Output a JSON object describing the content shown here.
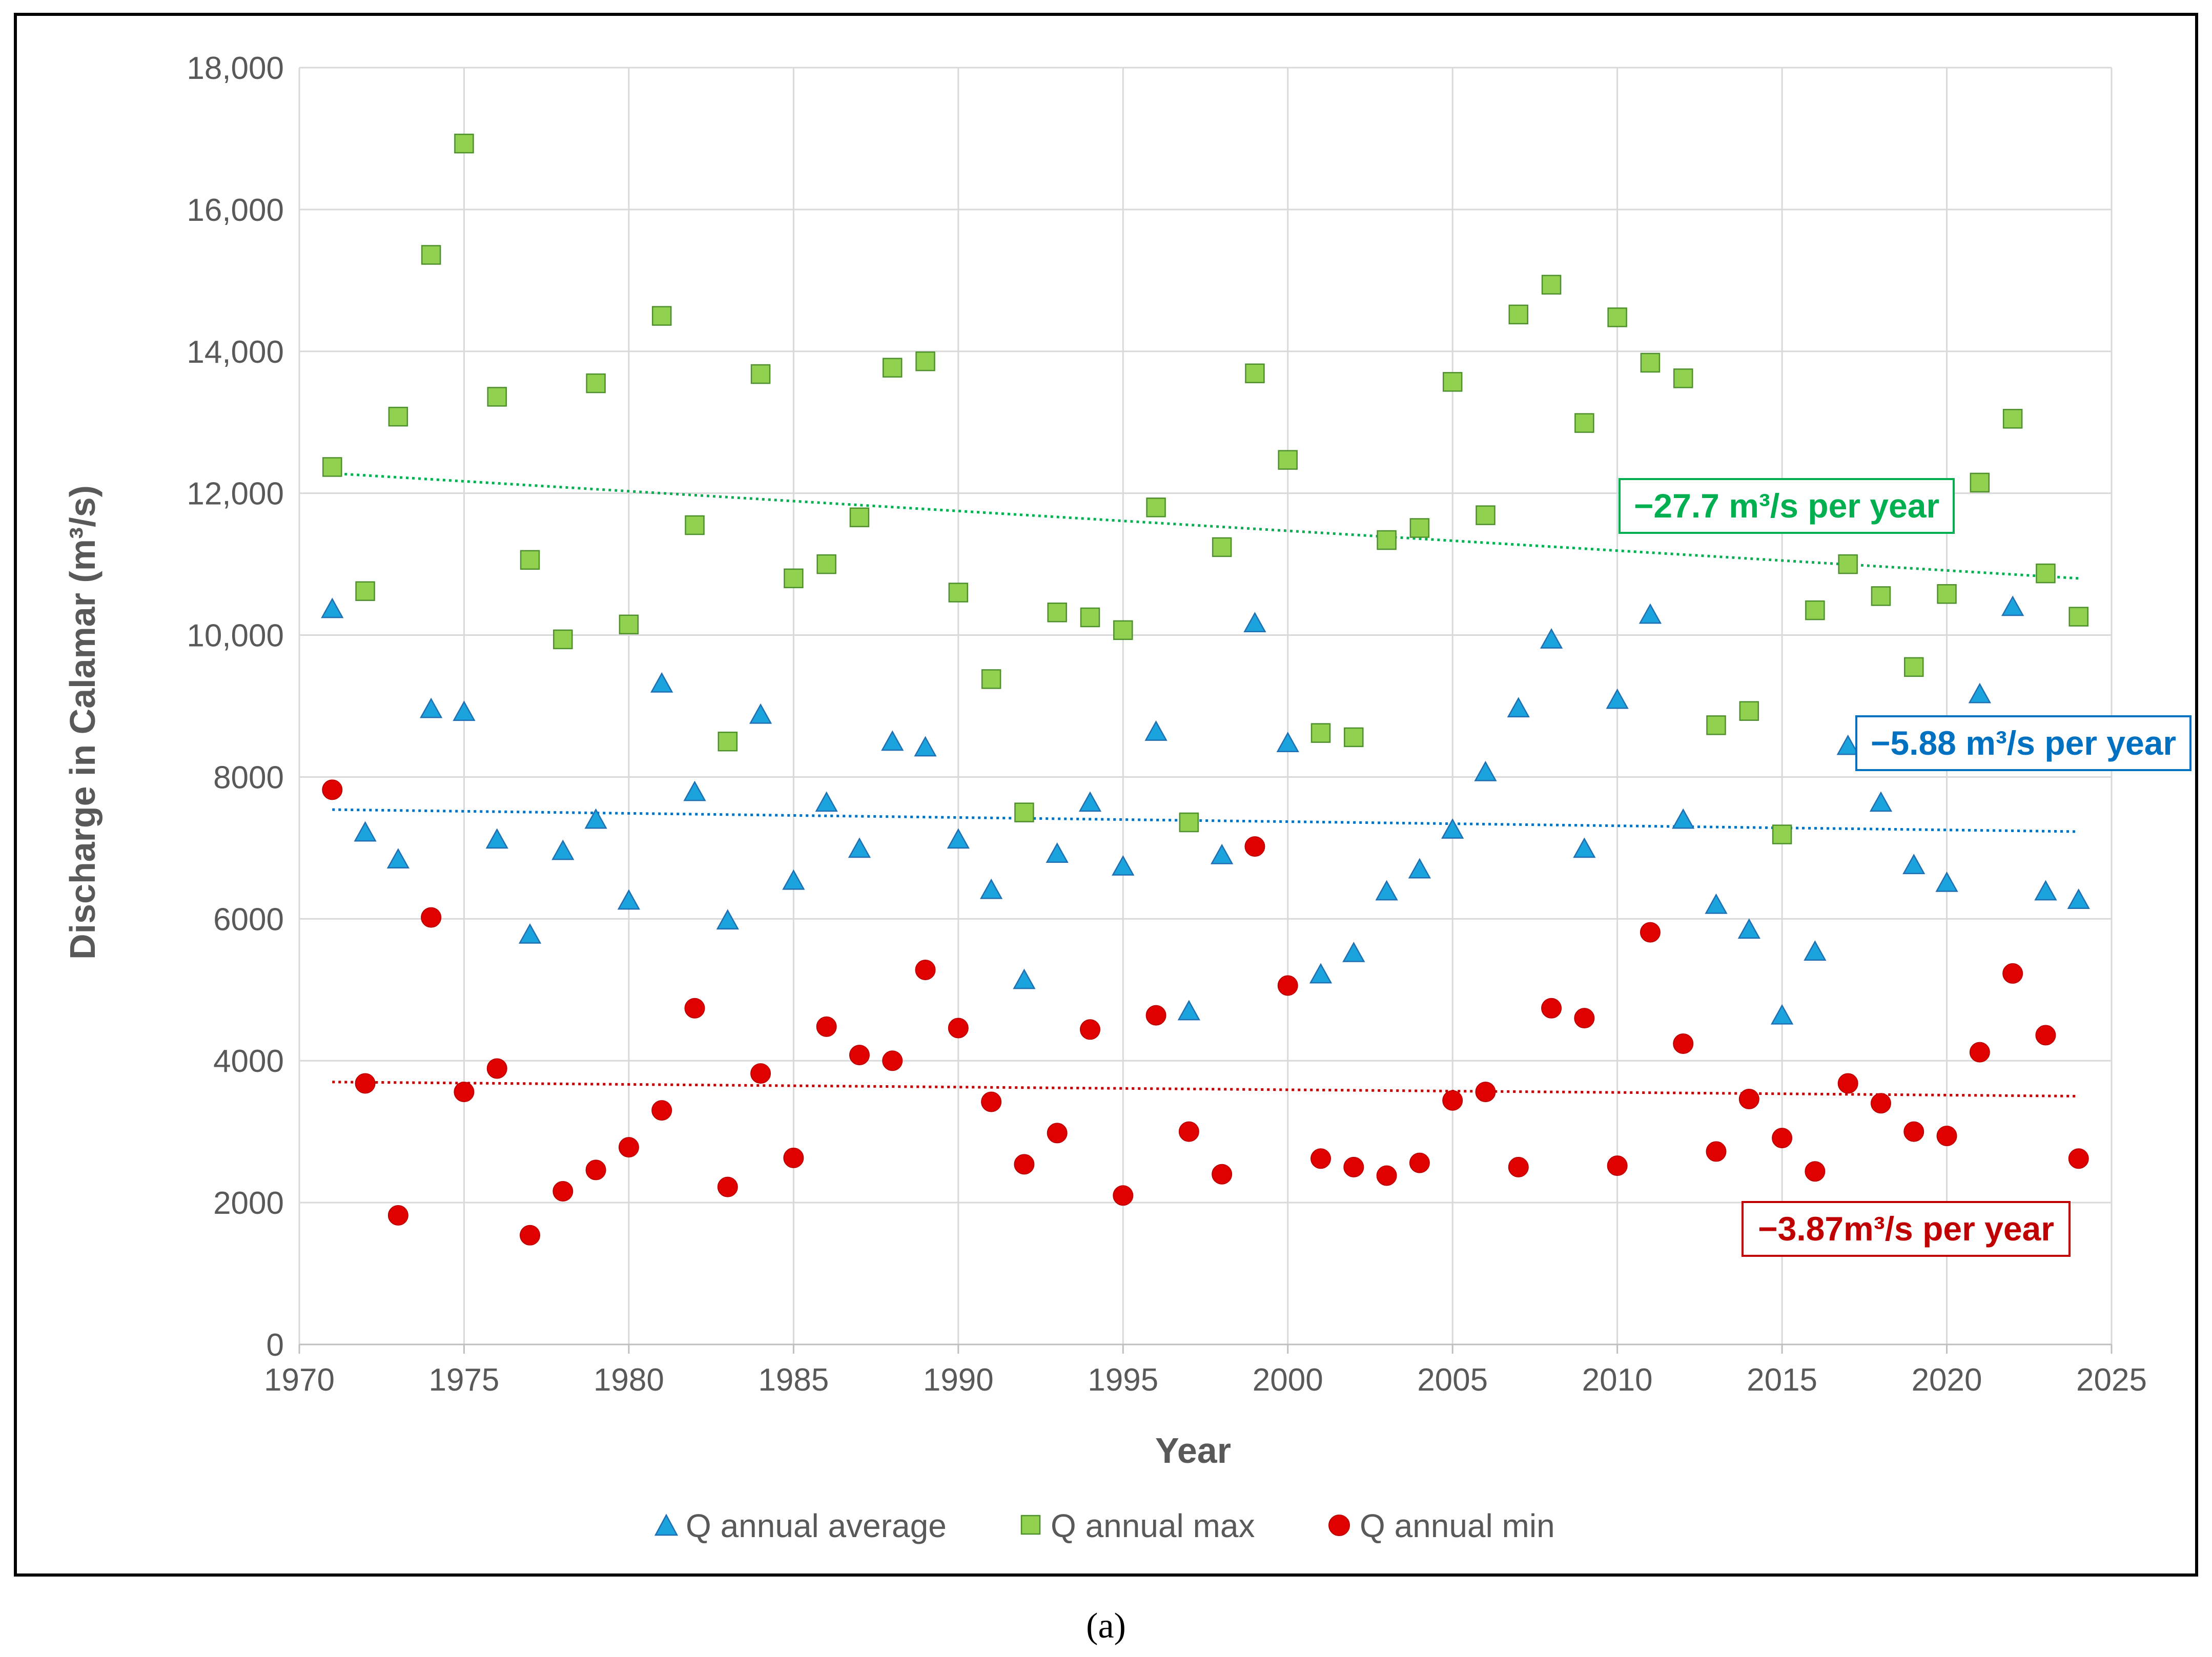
{
  "chart_data": {
    "type": "scatter",
    "title": "",
    "xlabel": "Year",
    "ylabel": "Discharge in Calamar (m³/s)",
    "xlim": [
      1970,
      2025
    ],
    "ylim": [
      0,
      18000
    ],
    "x_ticks": [
      1970,
      1975,
      1980,
      1985,
      1990,
      1995,
      2000,
      2005,
      2010,
      2015,
      2020,
      2025
    ],
    "x_tick_labels": [
      "1970",
      "1975",
      "1980",
      "1985",
      "1990",
      "1995",
      "2000",
      "2005",
      "2010",
      "2015",
      "2020",
      "2025"
    ],
    "y_ticks": [
      0,
      2000,
      4000,
      6000,
      8000,
      10000,
      12000,
      14000,
      16000,
      18000
    ],
    "y_tick_labels": [
      "0",
      "2000",
      "4000",
      "6000",
      "8000",
      "10,000",
      "12,000",
      "14,000",
      "16,000",
      "18,000"
    ],
    "grid": true,
    "legend_position": "bottom",
    "caption": "(a)",
    "x": [
      1971,
      1972,
      1973,
      1974,
      1975,
      1976,
      1977,
      1978,
      1979,
      1980,
      1981,
      1982,
      1983,
      1984,
      1985,
      1986,
      1987,
      1988,
      1989,
      1990,
      1991,
      1992,
      1993,
      1994,
      1995,
      1996,
      1997,
      1998,
      1999,
      2000,
      2001,
      2002,
      2003,
      2004,
      2005,
      2006,
      2007,
      2008,
      2009,
      2010,
      2011,
      2012,
      2013,
      2014,
      2015,
      2016,
      2017,
      2018,
      2019,
      2020,
      2021,
      2022,
      2023,
      2024
    ],
    "series": [
      {
        "name": "Q annual average",
        "marker": "triangle",
        "color": "#1AA3DD",
        "edge": "#1F6FB2",
        "values": [
          10350,
          7200,
          6820,
          8940,
          8900,
          7100,
          5760,
          6940,
          7380,
          6240,
          9300,
          7770,
          5960,
          8860,
          6520,
          7620,
          6970,
          8480,
          8400,
          7100,
          6390,
          5120,
          6900,
          7620,
          6720,
          8620,
          4680,
          6880,
          10150,
          8460,
          5200,
          5500,
          6370,
          6680,
          7240,
          8050,
          8950,
          9920,
          6970,
          9070,
          10270,
          7380,
          6180,
          5830,
          4620,
          5520,
          8420,
          7620,
          6740,
          6490,
          9150,
          10380,
          6370,
          6250
        ],
        "trend": {
          "start": 7540,
          "end": 7230,
          "label": "−5.88 m³/s per year",
          "color": "#0070C0"
        }
      },
      {
        "name": "Q annual max",
        "marker": "square",
        "color": "#92D050",
        "edge": "#4E8F2E",
        "values": [
          12370,
          10620,
          13080,
          15360,
          16930,
          13360,
          11060,
          9940,
          13550,
          10150,
          14500,
          11550,
          8500,
          13680,
          10800,
          11000,
          11660,
          13770,
          13860,
          10600,
          9380,
          7500,
          10320,
          10250,
          10070,
          11800,
          7360,
          11240,
          13690,
          12470,
          8620,
          8560,
          11340,
          11510,
          13570,
          11690,
          14520,
          14940,
          12990,
          14480,
          13840,
          13620,
          8730,
          8930,
          7190,
          10350,
          11000,
          10550,
          9550,
          10580,
          12150,
          13050,
          10870,
          10260
        ],
        "trend": {
          "start": 12280,
          "end": 10800,
          "label": "−27.7 m³/s per year",
          "color": "#00B050"
        }
      },
      {
        "name": "Q annual min",
        "marker": "circle",
        "color": "#E00000",
        "edge": "#C00000",
        "values": [
          7820,
          3680,
          1820,
          6020,
          3560,
          3890,
          1540,
          2160,
          2460,
          2780,
          3300,
          4740,
          2220,
          3820,
          2630,
          4480,
          4080,
          4000,
          5280,
          4460,
          3420,
          2540,
          2980,
          4440,
          2100,
          4640,
          3000,
          2400,
          7020,
          5060,
          2620,
          2500,
          2380,
          2560,
          3440,
          3560,
          2500,
          4740,
          4600,
          2520,
          5810,
          4240,
          2720,
          3460,
          2910,
          2440,
          3680,
          3400,
          3000,
          2940,
          4120,
          5230,
          4360,
          2620
        ],
        "trend": {
          "start": 3700,
          "end": 3500,
          "label": "−3.87m³/s per year",
          "color": "#C00000"
        }
      }
    ]
  }
}
